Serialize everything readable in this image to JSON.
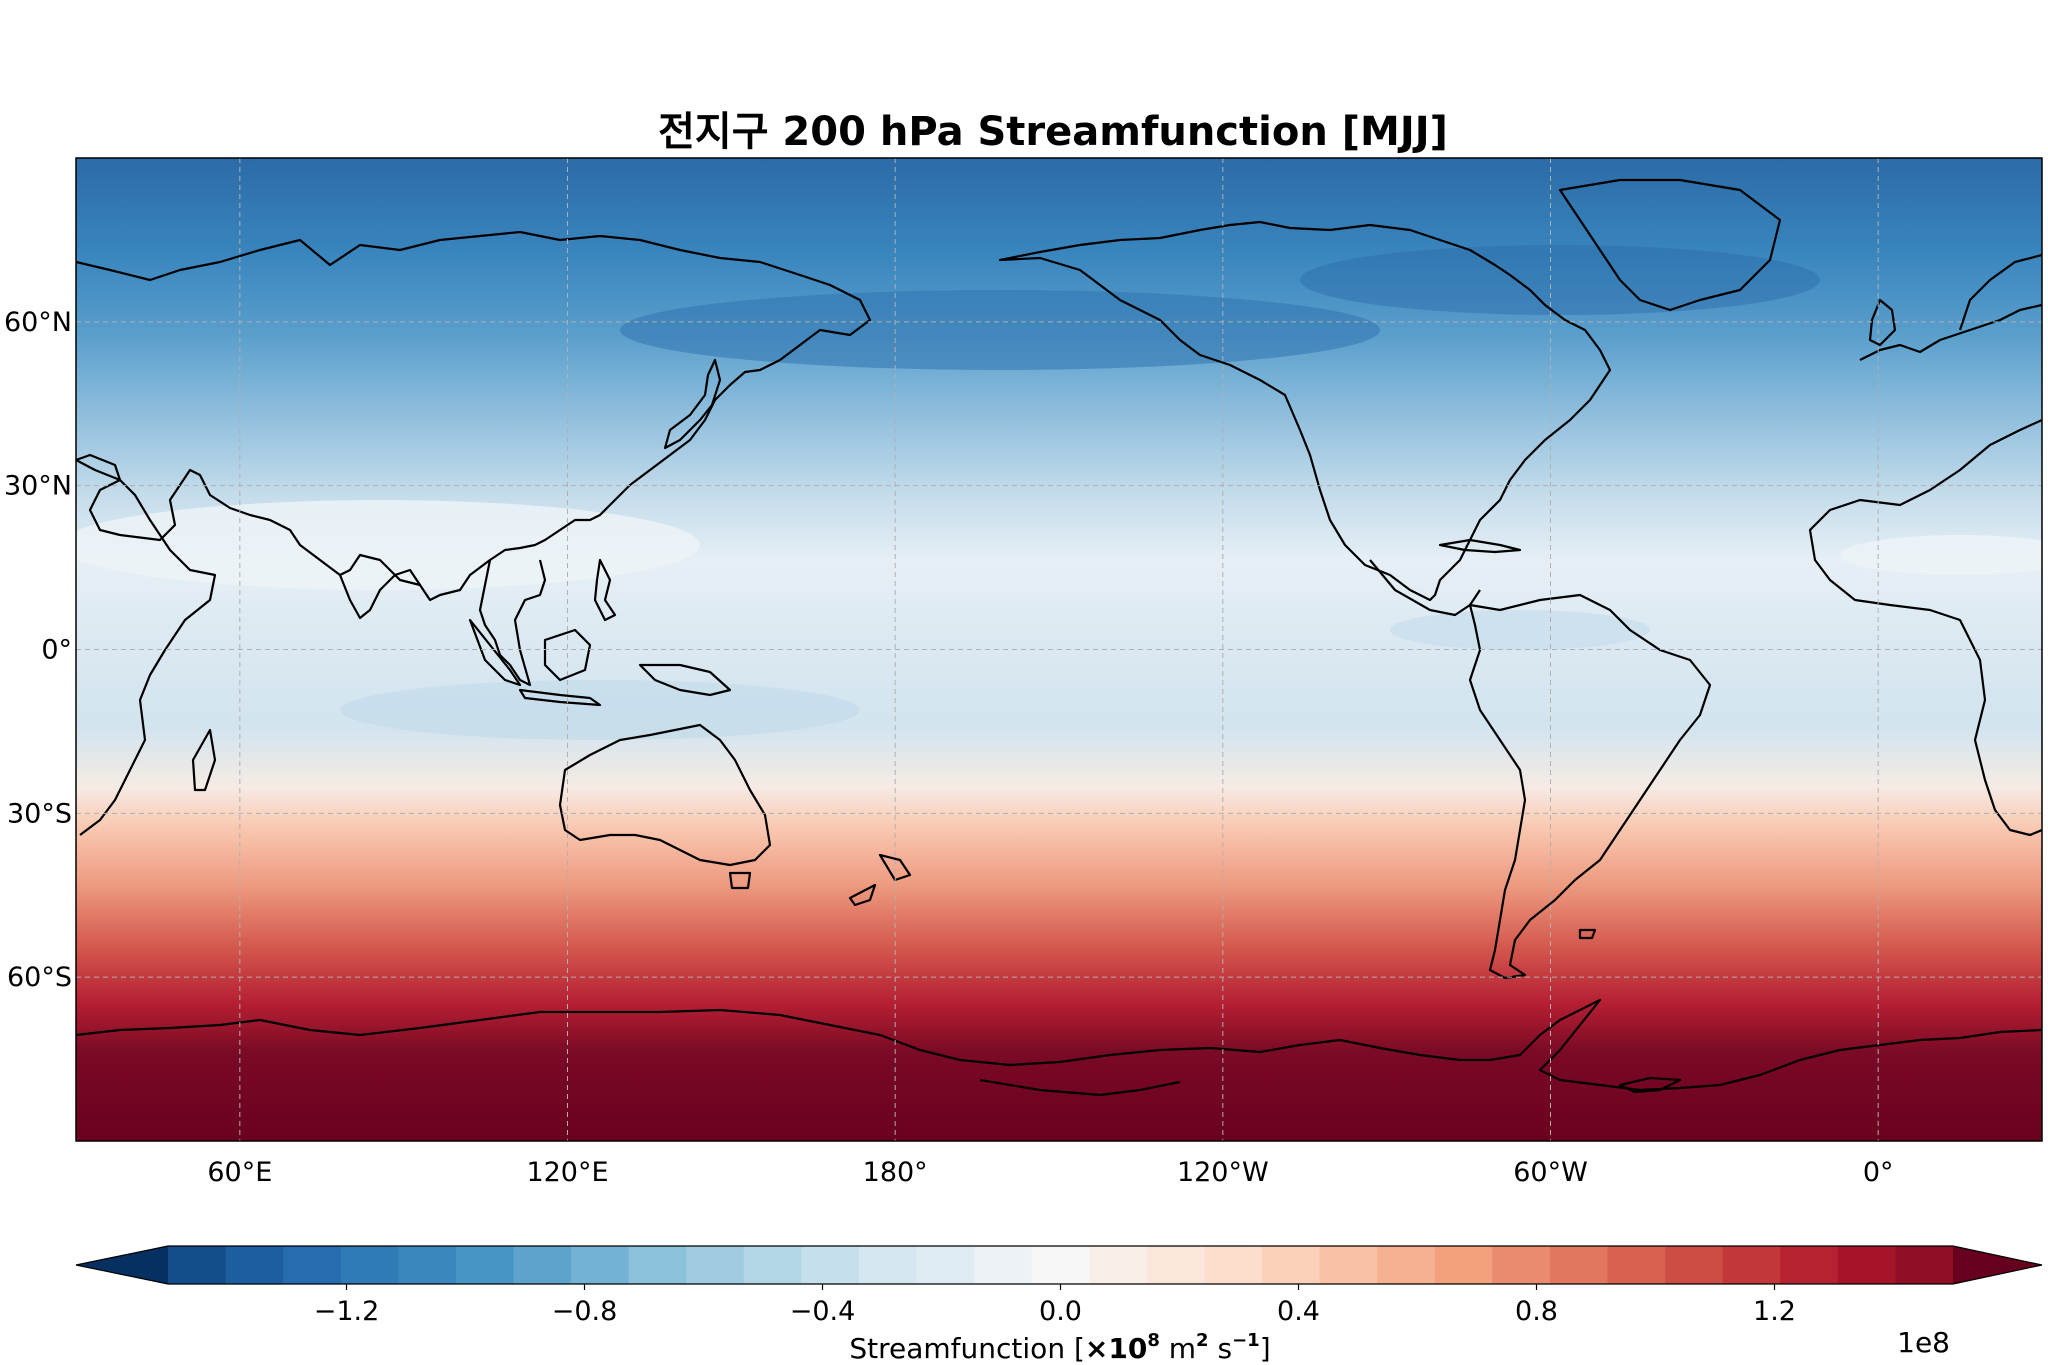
{
  "title": "전지구 200 hPa Streamfunction [MJJ]",
  "map": {
    "projection": "PlateCarree",
    "central_longitude": "180",
    "lon_extent": [
      30,
      390
    ],
    "lat_extent": [
      -90,
      90
    ],
    "gridlines": true,
    "coastlines": true,
    "lat_ticks": [
      {
        "value": 60,
        "label": "60°N"
      },
      {
        "value": 30,
        "label": "30°N"
      },
      {
        "value": 0,
        "label": "0°"
      },
      {
        "value": -30,
        "label": "30°S"
      },
      {
        "value": -60,
        "label": "60°S"
      }
    ],
    "lon_ticks": [
      {
        "value": 60,
        "label": "60°E"
      },
      {
        "value": 120,
        "label": "120°E"
      },
      {
        "value": 180,
        "label": "180°"
      },
      {
        "value": 240,
        "label": "120°W"
      },
      {
        "value": 300,
        "label": "60°W"
      },
      {
        "value": 360,
        "label": "0°"
      }
    ]
  },
  "colorbar": {
    "colormap": "RdBu_r",
    "levels_min": -1.5,
    "levels_max": 1.5,
    "n_bins": 31,
    "extend": "both",
    "ticks": [
      {
        "value": -1.2,
        "label": "−1.2"
      },
      {
        "value": -0.8,
        "label": "−0.8"
      },
      {
        "value": -0.4,
        "label": "−0.4"
      },
      {
        "value": 0.0,
        "label": "0.0"
      },
      {
        "value": 0.4,
        "label": "0.4"
      },
      {
        "value": 0.8,
        "label": "0.8"
      },
      {
        "value": 1.2,
        "label": "1.2"
      }
    ],
    "label_prefix": "Streamfunction [",
    "label_times": "×10",
    "label_exp": "8",
    "label_units_m": " m",
    "label_units_m_exp": "2",
    "label_units_s": " s",
    "label_units_s_exp": "−1",
    "label_suffix": "]",
    "offset_text": "1e8"
  },
  "colors": {
    "ocean_coast": "#000000",
    "grid": "#b0b0b0"
  }
}
